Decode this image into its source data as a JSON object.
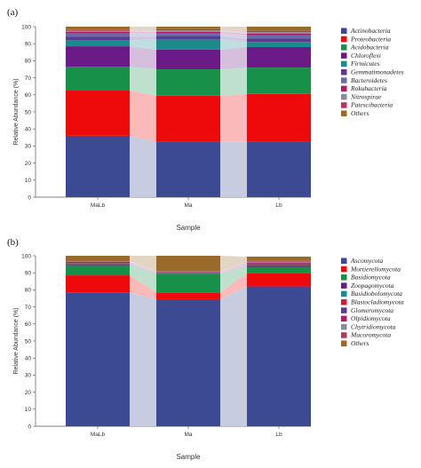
{
  "chart_data": [
    {
      "type": "bar",
      "stacked": true,
      "panel_label": "(a)",
      "categories": [
        "MaLb",
        "Ma",
        "Lb"
      ],
      "xlabel": "Sample",
      "ylabel": "Relative Abundance (%)",
      "ylim": [
        0,
        100
      ],
      "yticks": [
        0,
        10,
        20,
        30,
        40,
        50,
        60,
        70,
        80,
        90,
        100
      ],
      "legend_position": "right",
      "series": [
        {
          "name": "Actinobacteria",
          "color": "#3b4a92",
          "values": [
            36,
            32.5,
            32.5
          ]
        },
        {
          "name": "Proteobacteria",
          "color": "#ee0a0a",
          "values": [
            26.5,
            27,
            28
          ]
        },
        {
          "name": "Acidobacteria",
          "color": "#17904a",
          "values": [
            14,
            15.5,
            15.5
          ]
        },
        {
          "name": "Chloroflexi",
          "color": "#6a1b86",
          "values": [
            12,
            11.5,
            12
          ]
        },
        {
          "name": "Firmicutes",
          "color": "#1a8a8a",
          "values": [
            3.5,
            6,
            3
          ]
        },
        {
          "name": "Gemmatimonadetes",
          "color": "#5b3a93",
          "values": [
            2,
            2,
            2
          ]
        },
        {
          "name": "Bacteroidetes",
          "color": "#6a6aa8",
          "values": [
            2,
            1.5,
            2
          ]
        },
        {
          "name": "Rokubacteria",
          "color": "#b01c62",
          "values": [
            1,
            1,
            1
          ]
        },
        {
          "name": "Nitrospirae",
          "color": "#8a8a99",
          "values": [
            0.5,
            0.8,
            0.8
          ]
        },
        {
          "name": "Patescibacteria",
          "color": "#b03a5a",
          "values": [
            0.5,
            0.7,
            0.7
          ]
        },
        {
          "name": "Others",
          "color": "#9a6a2a",
          "values": [
            2,
            1.5,
            2.5
          ]
        }
      ]
    },
    {
      "type": "bar",
      "stacked": true,
      "panel_label": "(b)",
      "categories": [
        "MaLb",
        "Ma",
        "Lb"
      ],
      "xlabel": "Sample",
      "ylabel": "Relative Abundance (%)",
      "ylim": [
        0,
        100
      ],
      "yticks": [
        0,
        10,
        20,
        30,
        40,
        50,
        60,
        70,
        80,
        90,
        100
      ],
      "legend_position": "right",
      "series": [
        {
          "name": "Ascomycota",
          "color": "#3b4a92",
          "values": [
            78.5,
            74.5,
            82
          ]
        },
        {
          "name": "Mortierellomycota",
          "color": "#ee0a0a",
          "values": [
            10,
            4,
            8
          ]
        },
        {
          "name": "Basidiomycota",
          "color": "#17904a",
          "values": [
            6,
            11,
            3.5
          ]
        },
        {
          "name": "Zoopagomycota",
          "color": "#6a1b86",
          "values": [
            0.5,
            0.3,
            0.5
          ]
        },
        {
          "name": "Basidiobolomycota",
          "color": "#1a8a8a",
          "values": [
            0.5,
            0.2,
            0.5
          ]
        },
        {
          "name": "Blastocladiomycota",
          "color": "#cc1f3a",
          "values": [
            0.3,
            0.2,
            0.5
          ]
        },
        {
          "name": "Glomeromycota",
          "color": "#5b3a93",
          "values": [
            0.3,
            0.2,
            0.5
          ]
        },
        {
          "name": "Olpidiomycota",
          "color": "#b01c62",
          "values": [
            0.3,
            0.2,
            0.5
          ]
        },
        {
          "name": "Chytridiomycota",
          "color": "#8a8a99",
          "values": [
            0.2,
            0.1,
            0.5
          ]
        },
        {
          "name": "Mucoromycota",
          "color": "#b03a5a",
          "values": [
            0.2,
            0.1,
            0.5
          ]
        },
        {
          "name": "Others",
          "color": "#9a6a2a",
          "values": [
            3.2,
            9.2,
            2.5
          ]
        }
      ]
    }
  ]
}
